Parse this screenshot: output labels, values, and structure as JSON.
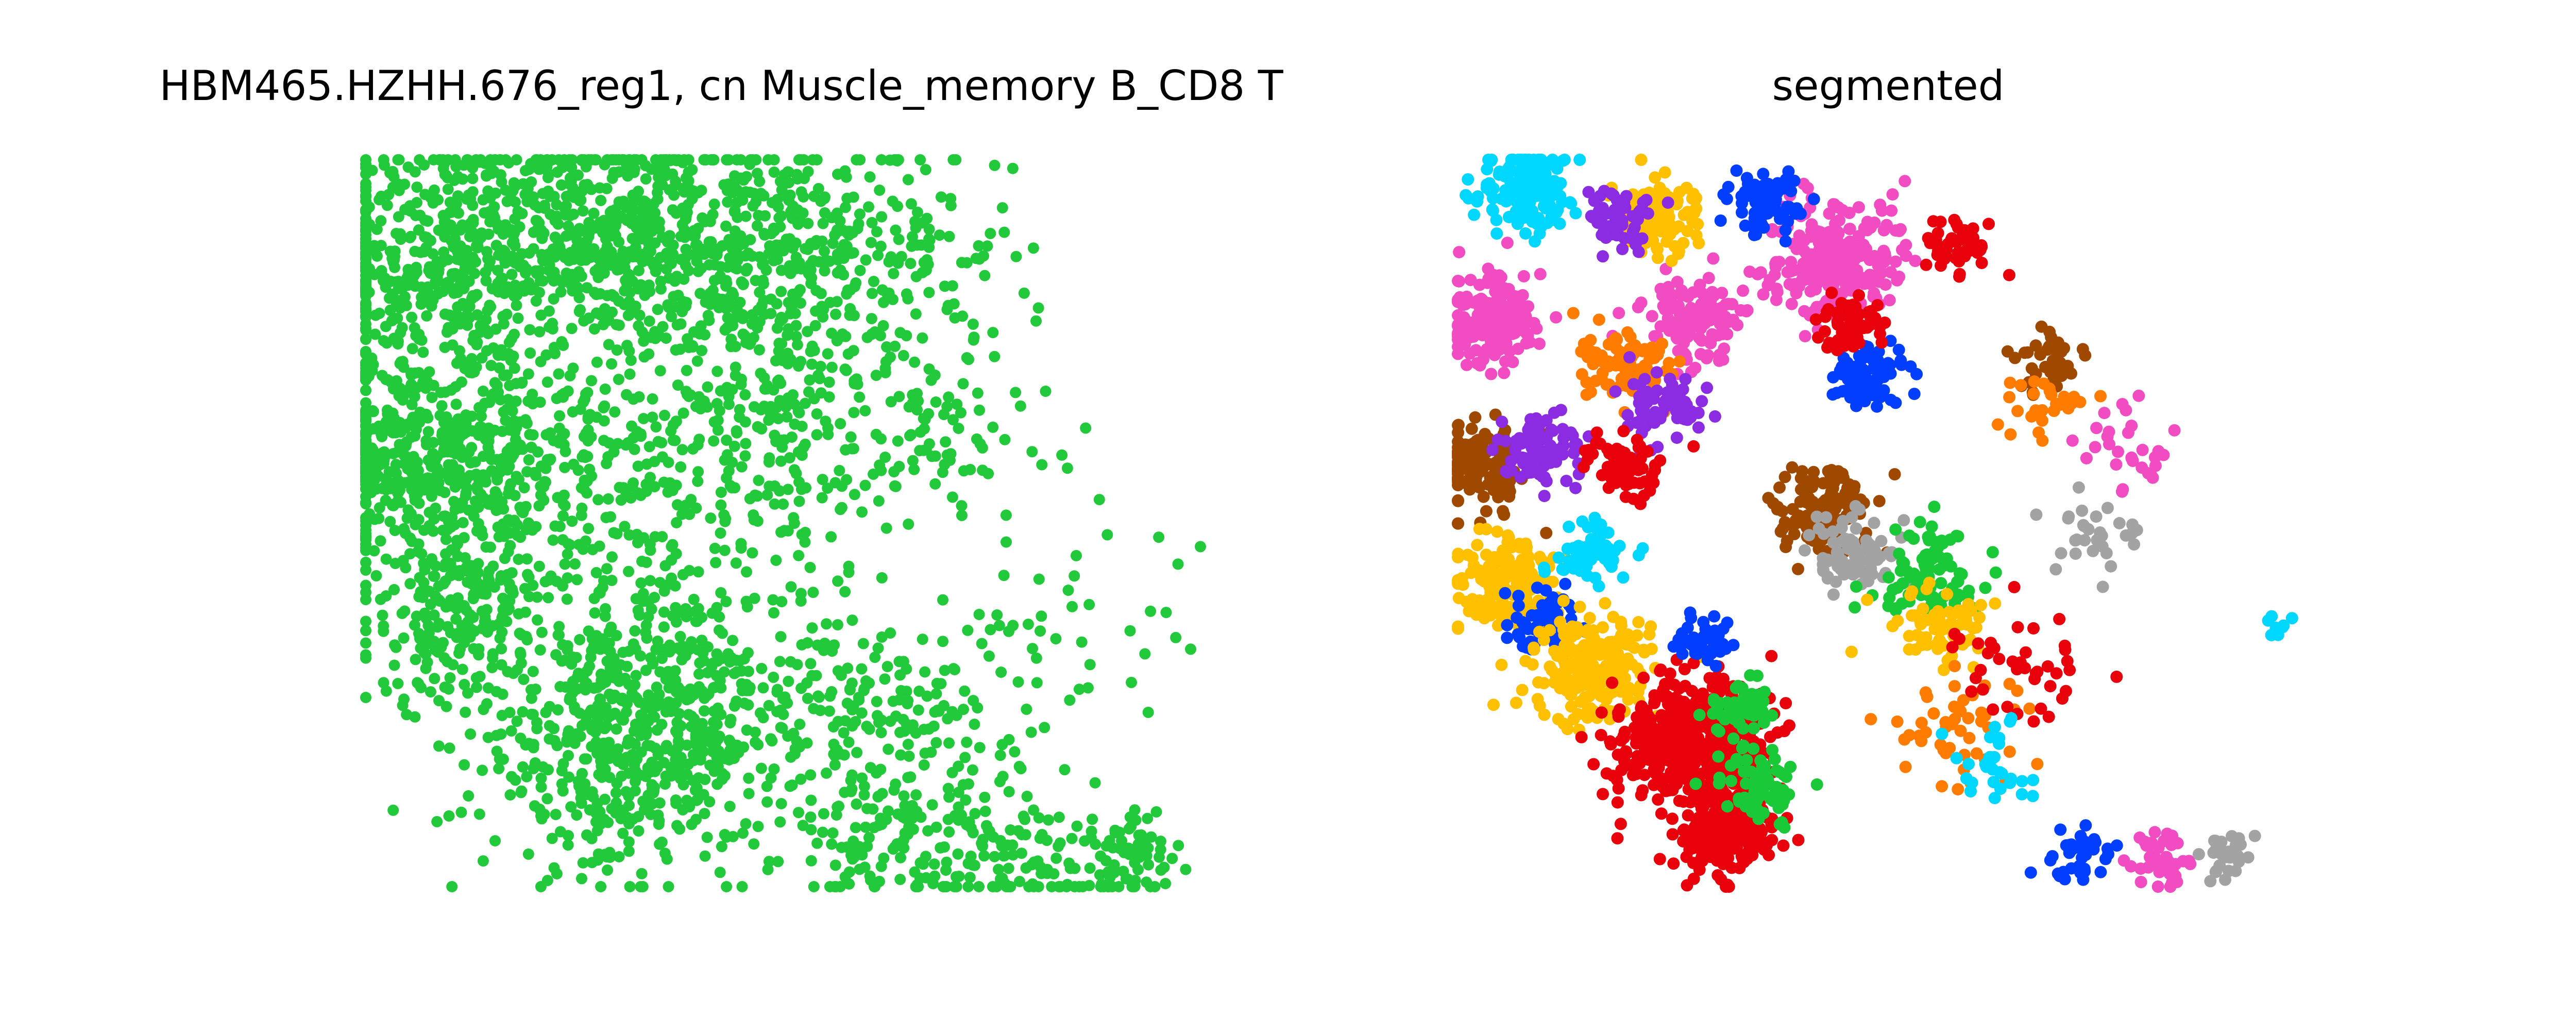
{
  "figure": {
    "left_title": "HBM465.HZHH.676_reg1, cn Muscle_memory B_CD8 T",
    "right_title": "segmented"
  },
  "chart_data": [
    {
      "type": "scatter",
      "title": "HBM465.HZHH.676_reg1, cn Muscle_memory B_CD8 T",
      "xlabel": "",
      "ylabel": "",
      "axes_visible": false,
      "grid": false,
      "legend": "none",
      "marker_color": "#22c93a",
      "series": [
        {
          "clusters": [
            {
              "x": 0.1,
              "y": 0.86,
              "n": 520,
              "spread": 0.09
            },
            {
              "x": 0.3,
              "y": 0.9,
              "n": 380,
              "spread": 0.08
            },
            {
              "x": 0.46,
              "y": 0.86,
              "n": 380,
              "spread": 0.09
            },
            {
              "x": 0.62,
              "y": 0.88,
              "n": 140,
              "spread": 0.08
            },
            {
              "x": 0.06,
              "y": 0.6,
              "n": 420,
              "spread": 0.07
            },
            {
              "x": 0.22,
              "y": 0.58,
              "n": 260,
              "spread": 0.09
            },
            {
              "x": 0.48,
              "y": 0.6,
              "n": 220,
              "spread": 0.09
            },
            {
              "x": 0.68,
              "y": 0.64,
              "n": 90,
              "spread": 0.08
            },
            {
              "x": 0.12,
              "y": 0.38,
              "n": 260,
              "spread": 0.07
            },
            {
              "x": 0.36,
              "y": 0.32,
              "n": 180,
              "spread": 0.08
            },
            {
              "x": 0.3,
              "y": 0.18,
              "n": 420,
              "spread": 0.08
            },
            {
              "x": 0.48,
              "y": 0.22,
              "n": 160,
              "spread": 0.08
            },
            {
              "x": 0.66,
              "y": 0.24,
              "n": 120,
              "spread": 0.07
            },
            {
              "x": 0.78,
              "y": 0.04,
              "n": 130,
              "spread": 0.06
            },
            {
              "x": 0.62,
              "y": 0.06,
              "n": 90,
              "spread": 0.05
            },
            {
              "x": 0.92,
              "y": 0.04,
              "n": 60,
              "spread": 0.03
            },
            {
              "x": 0.86,
              "y": 0.36,
              "n": 40,
              "spread": 0.08
            }
          ]
        }
      ]
    },
    {
      "type": "scatter",
      "title": "segmented",
      "xlabel": "",
      "ylabel": "",
      "axes_visible": false,
      "grid": false,
      "legend": "none",
      "palette": [
        "#ffc000",
        "#e8000b",
        "#1ac938",
        "#023eff",
        "#8b2be2",
        "#9f4800",
        "#f14cc1",
        "#a3a3a3",
        "#00d7ff",
        "#ff7c00"
      ],
      "segments": [
        {
          "color": 8,
          "x": 0.08,
          "y": 0.96,
          "n": 160,
          "spread": 0.03
        },
        {
          "color": 6,
          "x": 0.04,
          "y": 0.78,
          "n": 180,
          "spread": 0.03
        },
        {
          "color": 5,
          "x": 0.03,
          "y": 0.58,
          "n": 160,
          "spread": 0.028
        },
        {
          "color": 4,
          "x": 0.1,
          "y": 0.6,
          "n": 90,
          "spread": 0.025
        },
        {
          "color": 0,
          "x": 0.06,
          "y": 0.42,
          "n": 170,
          "spread": 0.03
        },
        {
          "color": 3,
          "x": 0.1,
          "y": 0.36,
          "n": 60,
          "spread": 0.022
        },
        {
          "color": 0,
          "x": 0.16,
          "y": 0.3,
          "n": 220,
          "spread": 0.035
        },
        {
          "color": 1,
          "x": 0.28,
          "y": 0.2,
          "n": 520,
          "spread": 0.045
        },
        {
          "color": 1,
          "x": 0.32,
          "y": 0.08,
          "n": 200,
          "spread": 0.03
        },
        {
          "color": 2,
          "x": 0.34,
          "y": 0.24,
          "n": 60,
          "spread": 0.02
        },
        {
          "color": 3,
          "x": 0.3,
          "y": 0.34,
          "n": 50,
          "spread": 0.018
        },
        {
          "color": 6,
          "x": 0.45,
          "y": 0.86,
          "n": 260,
          "spread": 0.04
        },
        {
          "color": 6,
          "x": 0.28,
          "y": 0.78,
          "n": 120,
          "spread": 0.028
        },
        {
          "color": 0,
          "x": 0.24,
          "y": 0.92,
          "n": 110,
          "spread": 0.025
        },
        {
          "color": 3,
          "x": 0.37,
          "y": 0.94,
          "n": 80,
          "spread": 0.022
        },
        {
          "color": 4,
          "x": 0.19,
          "y": 0.92,
          "n": 60,
          "spread": 0.02
        },
        {
          "color": 9,
          "x": 0.2,
          "y": 0.72,
          "n": 90,
          "spread": 0.028
        },
        {
          "color": 5,
          "x": 0.44,
          "y": 0.52,
          "n": 140,
          "spread": 0.03
        },
        {
          "color": 3,
          "x": 0.49,
          "y": 0.7,
          "n": 90,
          "spread": 0.022
        },
        {
          "color": 1,
          "x": 0.47,
          "y": 0.78,
          "n": 60,
          "spread": 0.02
        },
        {
          "color": 1,
          "x": 0.6,
          "y": 0.88,
          "n": 60,
          "spread": 0.02
        },
        {
          "color": 5,
          "x": 0.71,
          "y": 0.72,
          "n": 40,
          "spread": 0.018
        },
        {
          "color": 7,
          "x": 0.48,
          "y": 0.46,
          "n": 80,
          "spread": 0.028
        },
        {
          "color": 2,
          "x": 0.56,
          "y": 0.44,
          "n": 90,
          "spread": 0.035
        },
        {
          "color": 0,
          "x": 0.58,
          "y": 0.36,
          "n": 70,
          "spread": 0.03
        },
        {
          "color": 4,
          "x": 0.24,
          "y": 0.66,
          "n": 70,
          "spread": 0.025
        },
        {
          "color": 1,
          "x": 0.2,
          "y": 0.58,
          "n": 70,
          "spread": 0.025
        },
        {
          "color": 8,
          "x": 0.16,
          "y": 0.46,
          "n": 60,
          "spread": 0.022
        },
        {
          "color": 2,
          "x": 0.36,
          "y": 0.14,
          "n": 70,
          "spread": 0.025
        },
        {
          "color": 9,
          "x": 0.6,
          "y": 0.22,
          "n": 50,
          "spread": 0.035
        },
        {
          "color": 3,
          "x": 0.74,
          "y": 0.04,
          "n": 40,
          "spread": 0.02
        },
        {
          "color": 6,
          "x": 0.84,
          "y": 0.04,
          "n": 40,
          "spread": 0.02
        },
        {
          "color": 7,
          "x": 0.92,
          "y": 0.04,
          "n": 30,
          "spread": 0.015
        },
        {
          "color": 1,
          "x": 0.66,
          "y": 0.3,
          "n": 40,
          "spread": 0.04
        },
        {
          "color": 8,
          "x": 0.64,
          "y": 0.16,
          "n": 30,
          "spread": 0.03
        },
        {
          "color": 9,
          "x": 0.7,
          "y": 0.66,
          "n": 30,
          "spread": 0.03
        },
        {
          "color": 6,
          "x": 0.8,
          "y": 0.6,
          "n": 30,
          "spread": 0.03
        },
        {
          "color": 7,
          "x": 0.76,
          "y": 0.48,
          "n": 30,
          "spread": 0.03
        },
        {
          "color": 8,
          "x": 0.98,
          "y": 0.36,
          "n": 8,
          "spread": 0.008
        }
      ]
    }
  ]
}
